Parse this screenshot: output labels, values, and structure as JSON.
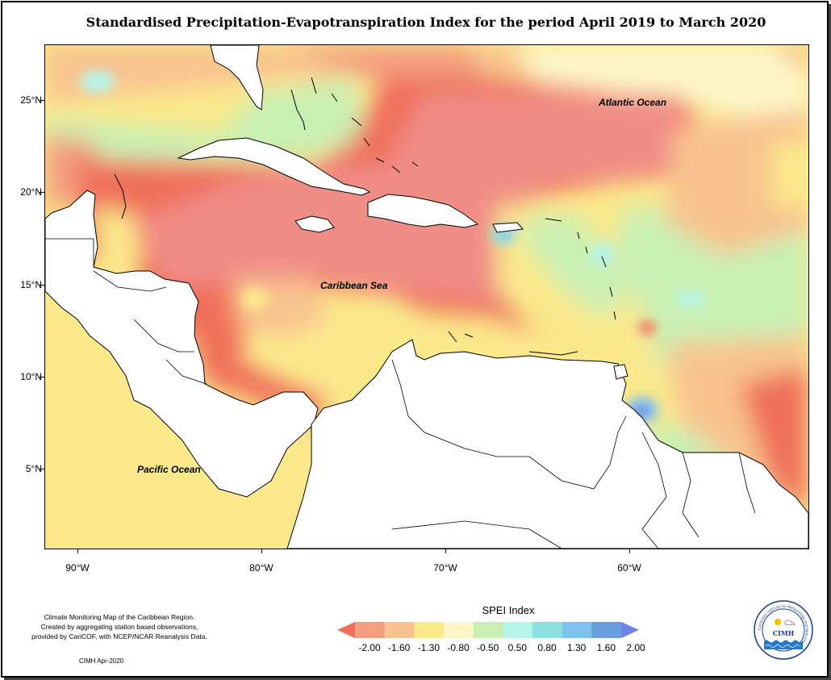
{
  "title": "Standardised Precipitation-Evapotranspiration Index for the period April 2019 to March 2020",
  "map": {
    "labels": {
      "atlantic": "Atlantic Ocean",
      "caribbean": "Caribbean Sea",
      "pacific": "Pacific Ocean"
    },
    "lat_ticks": [
      "25°N",
      "20°N",
      "15°N",
      "10°N",
      "5°N"
    ],
    "lon_ticks": [
      "90°W",
      "80°W",
      "70°W",
      "60°W"
    ]
  },
  "legend": {
    "title": "SPEI Index",
    "labels": [
      "-2.00",
      "-1.60",
      "-1.30",
      "-0.80",
      "-0.50",
      "0.50",
      "0.80",
      "1.30",
      "1.60",
      "2.00"
    ],
    "colors": [
      "#ef6f5a",
      "#f39e7f",
      "#f8c38f",
      "#fbe98c",
      "#fdf6c8",
      "#c9f0b3",
      "#b5f5ea",
      "#8ee0e0",
      "#7ec2f0",
      "#6a9edb",
      "#6f81ea"
    ]
  },
  "credit": {
    "line1": "Climate Monitoring Map of the Caribbean Region.",
    "line2": "Created by aggregating station based observations,",
    "line3": "provided by CariCOF, with NCEP/NCAR Reanalysis Data.",
    "date": "CIMH Apr-2020"
  },
  "logo": {
    "text": "CIMH",
    "ring_text": "Caribbean Institute for Meteorology and Hydrology"
  }
}
